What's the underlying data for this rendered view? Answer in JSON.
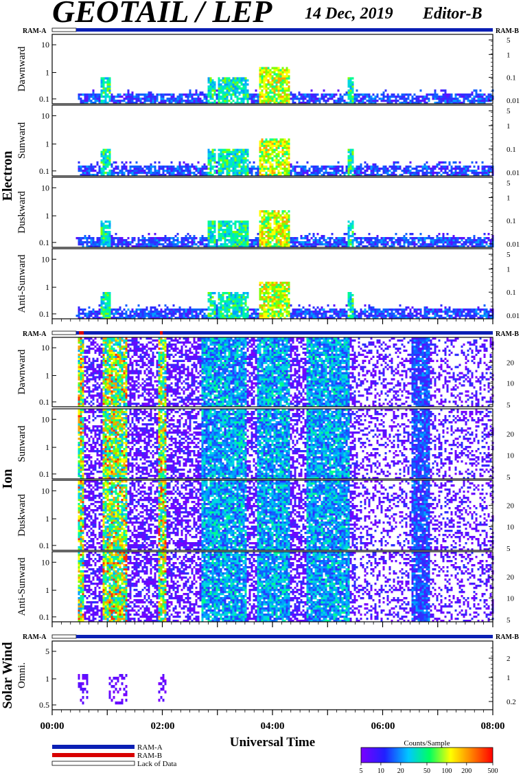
{
  "header": {
    "title": "GEOTAIL / LEP",
    "date": "14 Dec, 2019",
    "editor": "Editor-B"
  },
  "ram_labels": {
    "left": "RAM-A",
    "right": "RAM-B"
  },
  "sections": {
    "electron": "Electron",
    "ion": "Ion",
    "solar_wind": "Solar Wind"
  },
  "panels": [
    {
      "group": "electron",
      "name": "Dawnward",
      "left_ticks": [
        "10",
        "1",
        "0.1"
      ],
      "right_ticks": [
        "5",
        "1",
        "0.1",
        "0.01"
      ]
    },
    {
      "group": "electron",
      "name": "Sunward",
      "left_ticks": [
        "10",
        "1",
        "0.1"
      ],
      "right_ticks": [
        "5",
        "1",
        "0.1",
        "0.01"
      ]
    },
    {
      "group": "electron",
      "name": "Duskward",
      "left_ticks": [
        "10",
        "1",
        "0.1"
      ],
      "right_ticks": [
        "5",
        "1",
        "0.1",
        "0.01"
      ]
    },
    {
      "group": "electron",
      "name": "Anti-Sunward",
      "left_ticks": [
        "10",
        "1",
        "0.1"
      ],
      "right_ticks": [
        "5",
        "1",
        "0.1",
        "0.01"
      ]
    },
    {
      "group": "ion",
      "name": "Dawnward",
      "left_ticks": [
        "10",
        "1",
        "0.1"
      ],
      "right_ticks": [
        "20",
        "10",
        "5"
      ]
    },
    {
      "group": "ion",
      "name": "Sunward",
      "left_ticks": [
        "10",
        "1",
        "0.1"
      ],
      "right_ticks": [
        "20",
        "10",
        "5"
      ]
    },
    {
      "group": "ion",
      "name": "Duskward",
      "left_ticks": [
        "10",
        "1",
        "0.1"
      ],
      "right_ticks": [
        "20",
        "10",
        "5"
      ]
    },
    {
      "group": "ion",
      "name": "Anti-Sunward",
      "left_ticks": [
        "10",
        "1",
        "0.1"
      ],
      "right_ticks": [
        "20",
        "10",
        "5"
      ]
    },
    {
      "group": "solar_wind",
      "name": "Omni.",
      "left_ticks": [
        "5",
        "1",
        "0.5"
      ],
      "right_ticks": [
        "2",
        "1",
        "0.2"
      ]
    }
  ],
  "x_axis": {
    "label": "Universal Time",
    "ticks": [
      "00:00",
      "02:00",
      "04:00",
      "06:00",
      "08:00"
    ]
  },
  "legend": {
    "items": [
      {
        "label": "RAM-A",
        "color": "#0a1fb4"
      },
      {
        "label": "RAM-B",
        "color": "#d80000"
      },
      {
        "label": "Lack of Data",
        "color": "#ffffff"
      }
    ]
  },
  "colorbar": {
    "title": "Counts/Sample",
    "ticks": [
      "5",
      "10",
      "20",
      "50",
      "100",
      "200",
      "500"
    ]
  },
  "chart_data": {
    "type": "heatmap",
    "title": "GEOTAIL / LEP",
    "xlabel": "Universal Time",
    "x_range_hours": [
      0,
      8
    ],
    "data_start_hour": 0.43,
    "electron_activity": [
      {
        "start": 0.43,
        "end": 8.0,
        "level": "background"
      },
      {
        "start": 0.85,
        "end": 1.05,
        "level": "moderate"
      },
      {
        "start": 2.8,
        "end": 2.95,
        "level": "moderate"
      },
      {
        "start": 3.0,
        "end": 3.55,
        "level": "moderate"
      },
      {
        "start": 3.75,
        "end": 4.3,
        "level": "high"
      },
      {
        "start": 5.35,
        "end": 5.45,
        "level": "moderate"
      }
    ],
    "ion_activity": [
      {
        "start": 0.43,
        "end": 0.55,
        "level": "high"
      },
      {
        "start": 0.9,
        "end": 1.35,
        "level": "high"
      },
      {
        "start": 1.9,
        "end": 2.05,
        "level": "high"
      },
      {
        "start": 2.7,
        "end": 3.5,
        "level": "moderate"
      },
      {
        "start": 3.7,
        "end": 4.3,
        "level": "moderate"
      },
      {
        "start": 4.6,
        "end": 5.4,
        "level": "moderate"
      },
      {
        "start": 6.5,
        "end": 6.85,
        "level": "low"
      }
    ],
    "solar_wind_activity": [
      {
        "start": 0.45,
        "end": 0.65,
        "level": "low"
      },
      {
        "start": 1.0,
        "end": 1.35,
        "level": "low"
      },
      {
        "start": 1.9,
        "end": 2.05,
        "level": "low"
      }
    ],
    "colorbar_range": [
      5,
      500
    ],
    "colorbar_scale": "log"
  }
}
